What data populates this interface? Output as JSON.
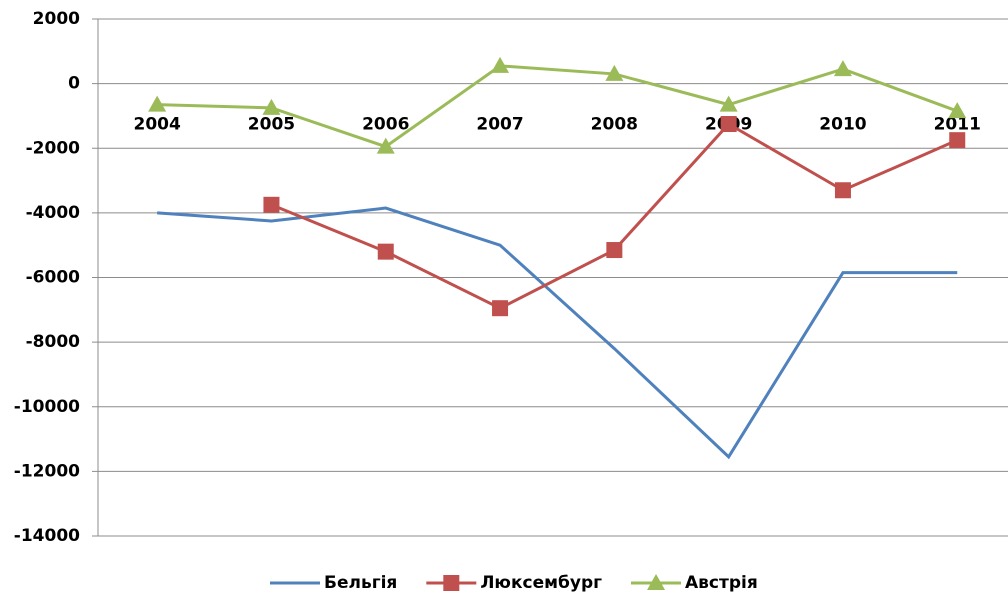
{
  "chart_data": {
    "type": "line",
    "categories": [
      "2004",
      "2005",
      "2006",
      "2007",
      "2008",
      "2009",
      "2010",
      "2011"
    ],
    "series": [
      {
        "name": "Бельгія",
        "color": "#4f81bd",
        "marker": "none",
        "values": [
          -4000,
          -4250,
          -3850,
          -5000,
          -8200,
          -11550,
          -5850,
          -5850
        ]
      },
      {
        "name": "Люксембург",
        "color": "#c0504d",
        "marker": "square",
        "values": [
          null,
          -3750,
          -5200,
          -6950,
          -5150,
          -1250,
          -3300,
          -1750
        ]
      },
      {
        "name": "Австрія",
        "color": "#9bbb59",
        "marker": "triangle",
        "values": [
          -650,
          -750,
          -1950,
          550,
          300,
          -650,
          450,
          -850
        ]
      }
    ],
    "ylim": [
      -14000,
      2000
    ],
    "yticks": [
      2000,
      0,
      -2000,
      -4000,
      -6000,
      -8000,
      -10000,
      -12000,
      -14000
    ],
    "grid": true,
    "legend": "bottom"
  }
}
